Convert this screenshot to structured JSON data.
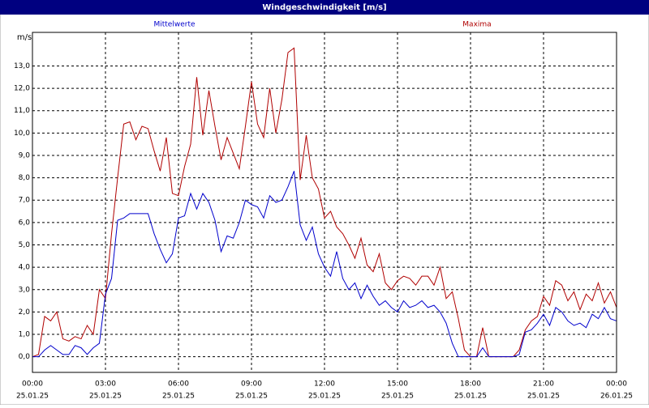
{
  "chart_data": {
    "type": "line",
    "title": "Windgeschwindigkeit [m/s]",
    "y_unit": "m/s",
    "x": [
      0,
      0.25,
      0.5,
      0.75,
      1,
      1.25,
      1.5,
      1.75,
      2,
      2.25,
      2.5,
      2.75,
      3,
      3.25,
      3.5,
      3.75,
      4,
      4.25,
      4.5,
      4.75,
      5,
      5.25,
      5.5,
      5.75,
      6,
      6.25,
      6.5,
      6.75,
      7,
      7.25,
      7.5,
      7.75,
      8,
      8.25,
      8.5,
      8.75,
      9,
      9.25,
      9.5,
      9.75,
      10,
      10.25,
      10.5,
      10.75,
      11,
      11.25,
      11.5,
      11.75,
      12,
      12.25,
      12.5,
      12.75,
      13,
      13.25,
      13.5,
      13.75,
      14,
      14.25,
      14.5,
      14.75,
      15,
      15.25,
      15.5,
      15.75,
      16,
      16.25,
      16.5,
      16.75,
      17,
      17.25,
      17.5,
      17.75,
      18,
      18.25,
      18.5,
      18.75,
      19,
      19.25,
      19.5,
      19.75,
      20,
      20.25,
      20.5,
      20.75,
      21,
      21.25,
      21.5,
      21.75,
      22,
      22.25,
      22.5,
      22.75,
      23,
      23.25,
      23.5,
      23.75,
      24
    ],
    "series": [
      {
        "name": "Mittelwerte",
        "color": "#0000cc",
        "values": [
          0,
          0,
          0.3,
          0.5,
          0.3,
          0.1,
          0.1,
          0.5,
          0.4,
          0.1,
          0.4,
          0.6,
          2.8,
          3.5,
          6.1,
          6.2,
          6.4,
          6.4,
          6.4,
          6.4,
          5.5,
          4.8,
          4.2,
          4.6,
          6.2,
          6.3,
          7.3,
          6.6,
          7.3,
          6.9,
          6.1,
          4.7,
          5.4,
          5.3,
          6.0,
          7.0,
          6.8,
          6.7,
          6.2,
          7.2,
          6.9,
          7.0,
          7.6,
          8.3,
          5.9,
          5.2,
          5.8,
          4.6,
          4.0,
          3.6,
          4.7,
          3.5,
          3.0,
          3.3,
          2.6,
          3.2,
          2.7,
          2.3,
          2.5,
          2.2,
          2.0,
          2.5,
          2.2,
          2.3,
          2.5,
          2.2,
          2.3,
          2.0,
          1.5,
          0.6,
          0,
          0,
          0,
          0,
          0.4,
          0,
          0,
          0,
          0,
          0,
          0.1,
          1.1,
          1.2,
          1.5,
          1.9,
          1.4,
          2.2,
          2.0,
          1.6,
          1.4,
          1.5,
          1.3,
          1.9,
          1.7,
          2.2,
          1.7,
          1.6
        ]
      },
      {
        "name": "Maxima",
        "color": "#b00000",
        "values": [
          0,
          0.1,
          1.8,
          1.6,
          2.0,
          0.8,
          0.7,
          0.9,
          0.8,
          1.4,
          1.0,
          3.0,
          2.6,
          5.5,
          8.0,
          10.4,
          10.5,
          9.7,
          10.3,
          10.2,
          9.2,
          8.3,
          9.8,
          7.3,
          7.2,
          8.5,
          9.5,
          12.5,
          9.9,
          11.9,
          10.3,
          8.8,
          9.8,
          9.1,
          8.4,
          10.3,
          12.3,
          10.4,
          9.8,
          12.0,
          10.0,
          11.5,
          13.6,
          13.8,
          7.9,
          9.9,
          8.0,
          7.5,
          6.2,
          6.5,
          5.8,
          5.5,
          5.0,
          4.4,
          5.3,
          4.1,
          3.8,
          4.6,
          3.3,
          3.0,
          3.4,
          3.6,
          3.5,
          3.2,
          3.6,
          3.6,
          3.2,
          4.0,
          2.6,
          2.9,
          1.7,
          0.3,
          0,
          0,
          1.3,
          0,
          0,
          0,
          0,
          0,
          0.3,
          1.2,
          1.6,
          1.8,
          2.7,
          2.3,
          3.4,
          3.2,
          2.5,
          2.9,
          2.1,
          2.8,
          2.5,
          3.3,
          2.4,
          2.9,
          2.2
        ]
      }
    ],
    "xlim": [
      0,
      24
    ],
    "xticks": [
      {
        "value": 0,
        "label": "00:00",
        "date": "25.01.25"
      },
      {
        "value": 3,
        "label": "03:00",
        "date": "25.01.25"
      },
      {
        "value": 6,
        "label": "06:00",
        "date": "25.01.25"
      },
      {
        "value": 9,
        "label": "09:00",
        "date": "25.01.25"
      },
      {
        "value": 12,
        "label": "12:00",
        "date": "25.01.25"
      },
      {
        "value": 15,
        "label": "15:00",
        "date": "25.01.25"
      },
      {
        "value": 18,
        "label": "18:00",
        "date": "25.01.25"
      },
      {
        "value": 21,
        "label": "21:00",
        "date": "25.01.25"
      },
      {
        "value": 24,
        "label": "00:00",
        "date": "26.01.25"
      }
    ],
    "ylim": [
      -0.7,
      14.5
    ],
    "yticks": [
      {
        "value": 0,
        "label": "0,0"
      },
      {
        "value": 1,
        "label": "1,0"
      },
      {
        "value": 2,
        "label": "2,0"
      },
      {
        "value": 3,
        "label": "3,0"
      },
      {
        "value": 4,
        "label": "4,0"
      },
      {
        "value": 5,
        "label": "5,0"
      },
      {
        "value": 6,
        "label": "6,0"
      },
      {
        "value": 7,
        "label": "7,0"
      },
      {
        "value": 8,
        "label": "8,0"
      },
      {
        "value": 9,
        "label": "9,0"
      },
      {
        "value": 10,
        "label": "10,0"
      },
      {
        "value": 11,
        "label": "11,0"
      },
      {
        "value": 12,
        "label": "12,0"
      },
      {
        "value": 13,
        "label": "13,0"
      }
    ],
    "grid": true
  }
}
